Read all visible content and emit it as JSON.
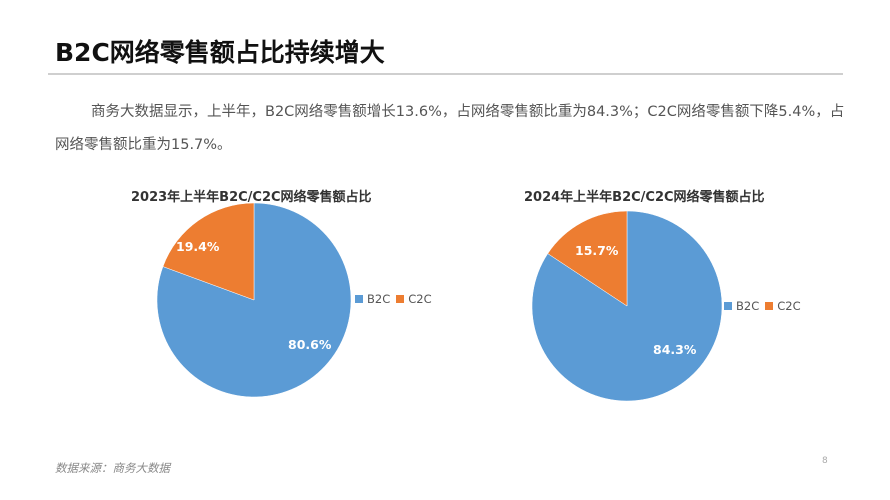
{
  "page": {
    "title": "B2C网络零售额占比持续增大",
    "summary": "商务大数据显示，上半年，B2C网络零售额增长13.6%，占网络零售额比重为84.3%；C2C网络零售额下降5.4%，占网络零售额比重为15.7%。",
    "source": "数据来源：商务大数据",
    "page_number": "8"
  },
  "colors": {
    "b2c": "#5B9BD5",
    "c2c": "#ED7D31"
  },
  "legend": {
    "b2c": "B2C",
    "c2c": "C2C"
  },
  "chart_data": [
    {
      "type": "pie",
      "title": "2023年上半年B2C/C2C网络零售额占比",
      "categories": [
        "B2C",
        "C2C"
      ],
      "values": [
        80.6,
        19.4
      ],
      "labels": [
        "80.6%",
        "19.4%"
      ],
      "colors": [
        "#5B9BD5",
        "#ED7D31"
      ],
      "legend_position": "right"
    },
    {
      "type": "pie",
      "title": "2024年上半年B2C/C2C网络零售额占比",
      "categories": [
        "B2C",
        "C2C"
      ],
      "values": [
        84.3,
        15.7
      ],
      "labels": [
        "84.3%",
        "15.7%"
      ],
      "colors": [
        "#5B9BD5",
        "#ED7D31"
      ],
      "legend_position": "right"
    }
  ]
}
